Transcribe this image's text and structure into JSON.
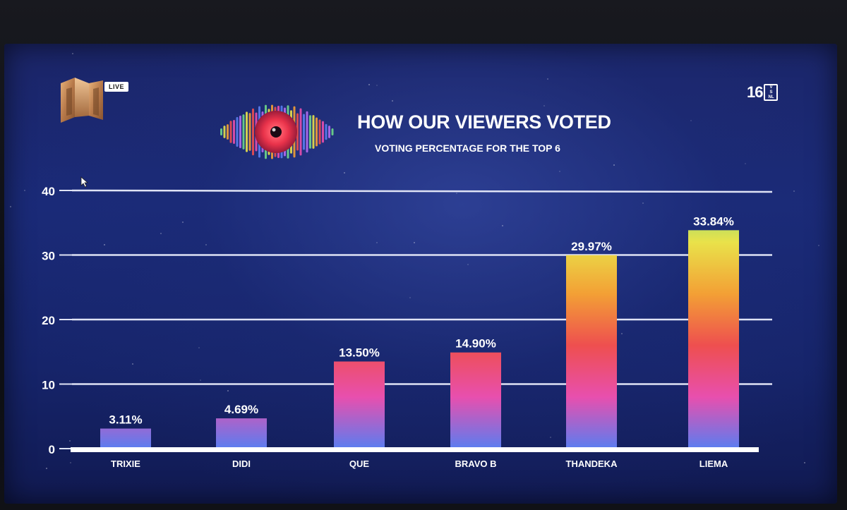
{
  "broadcast": {
    "channel_tag": "LIVE",
    "rating_number": "16",
    "rating_box_lines": [
      "V",
      "S",
      "NL"
    ]
  },
  "colors": {
    "background": "#1a2a78",
    "gridline": "#dfe3f5",
    "text": "#ffffff",
    "bar_gradient": [
      "#6fd88a",
      "#e9e24a",
      "#f3a035",
      "#ee4f4f",
      "#e84fae",
      "#5a7df0"
    ]
  },
  "icons": [
    "m-net-logo-icon",
    "eye-logo-icon",
    "cursor-icon"
  ],
  "chart_data": {
    "type": "bar",
    "title": "HOW OUR VIEWERS VOTED",
    "subtitle": "VOTING PERCENTAGE FOR THE TOP 6",
    "xlabel": "",
    "ylabel": "",
    "ylim": [
      0,
      40
    ],
    "yticks": [
      0,
      10,
      20,
      30,
      40
    ],
    "grid": true,
    "legend": "none",
    "categories": [
      "TRIXIE",
      "DIDI",
      "QUE",
      "BRAVO B",
      "THANDEKA",
      "LIEMA"
    ],
    "values": [
      3.11,
      4.69,
      13.5,
      14.9,
      29.97,
      33.84
    ],
    "data_labels": [
      "3.11%",
      "4.69%",
      "13.50%",
      "14.90%",
      "29.97%",
      "33.84%"
    ]
  }
}
